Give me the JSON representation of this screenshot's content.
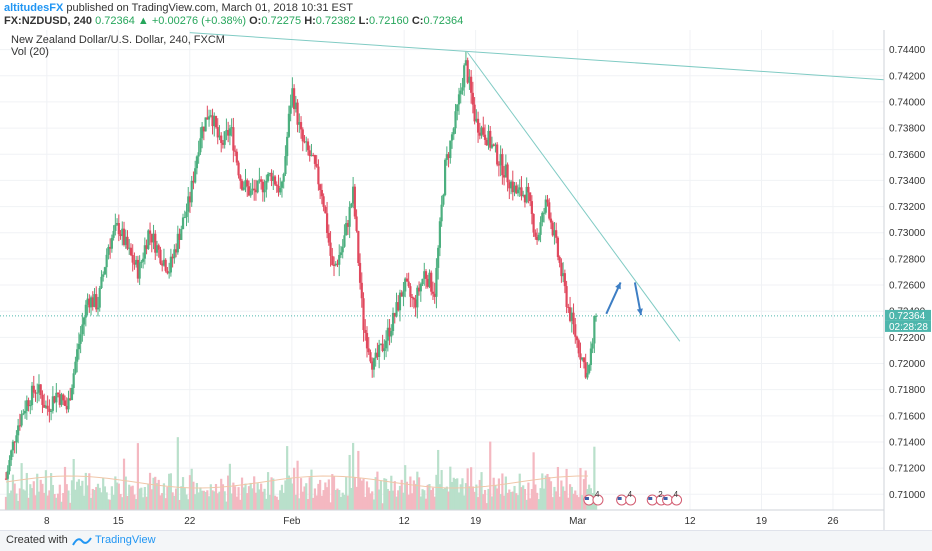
{
  "header": {
    "author": "altitudesFX",
    "published_text": " published on TradingView.com, March 01, 2018 10:31 EST",
    "symbol": "FX:NZDUSD, 240",
    "last": "0.72364",
    "change_arrow": "▲",
    "change": "+0.00276 (+0.38%)",
    "o_label": "O:",
    "o_val": "0.72275",
    "h_label": "H:",
    "h_val": "0.72382",
    "l_label": "L:",
    "l_val": "0.72160",
    "c_label": "C:",
    "c_val": "0.72364"
  },
  "legend": {
    "title": "New Zealand Dollar/U.S. Dollar, 240, FXCM",
    "vol": "Vol (20)"
  },
  "footer": {
    "created_with": "Created with",
    "brand": "TradingView"
  },
  "colors": {
    "up": "#4caf7f",
    "down": "#e0495e",
    "up_vol": "#b9e0cb",
    "down_vol": "#f4b8c1",
    "trendline": "#80cbc4",
    "arrow": "#3d7ec4",
    "price_tag": "#4db6ac",
    "grid": "#f0f2f5",
    "axis_text": "#333333"
  },
  "chart_data": {
    "type": "candlestick",
    "title": "New Zealand Dollar/U.S. Dollar, 240, FXCM",
    "ylim": [
      0.7088,
      0.7455
    ],
    "y_ticks": [
      "0.71000",
      "0.71200",
      "0.71400",
      "0.71600",
      "0.71800",
      "0.72000",
      "0.72200",
      "0.72400",
      "0.72600",
      "0.72800",
      "0.73000",
      "0.73200",
      "0.73400",
      "0.73600",
      "0.73800",
      "0.74000",
      "0.74200",
      "0.74400"
    ],
    "x_ticks": [
      {
        "label": "8",
        "day": 4
      },
      {
        "label": "15",
        "day": 11
      },
      {
        "label": "22",
        "day": 18
      },
      {
        "label": "Feb",
        "day": 28
      },
      {
        "label": "12",
        "day": 39
      },
      {
        "label": "19",
        "day": 46
      },
      {
        "label": "Mar",
        "day": 56
      },
      {
        "label": "12",
        "day": 67
      },
      {
        "label": "19",
        "day": 74
      },
      {
        "label": "26",
        "day": 81
      }
    ],
    "xlim_days": [
      0,
      86
    ],
    "current_price": "0.72364",
    "countdown": "02:28:28",
    "current_value": 0.72364,
    "price_path": [
      [
        0,
        0.7112
      ],
      [
        1,
        0.715
      ],
      [
        2,
        0.717
      ],
      [
        3,
        0.7182
      ],
      [
        4,
        0.7165
      ],
      [
        5,
        0.7178
      ],
      [
        6,
        0.7165
      ],
      [
        7,
        0.721
      ],
      [
        8,
        0.725
      ],
      [
        9,
        0.7245
      ],
      [
        10,
        0.729
      ],
      [
        11,
        0.7305
      ],
      [
        12,
        0.7285
      ],
      [
        13,
        0.727
      ],
      [
        14,
        0.7302
      ],
      [
        15,
        0.7285
      ],
      [
        16,
        0.7272
      ],
      [
        17,
        0.73
      ],
      [
        18,
        0.7325
      ],
      [
        19,
        0.7375
      ],
      [
        20,
        0.7395
      ],
      [
        21,
        0.7365
      ],
      [
        22,
        0.738
      ],
      [
        23,
        0.734
      ],
      [
        24,
        0.733
      ],
      [
        25,
        0.7335
      ],
      [
        26,
        0.7345
      ],
      [
        27,
        0.733
      ],
      [
        28,
        0.741
      ],
      [
        29,
        0.737
      ],
      [
        30,
        0.7355
      ],
      [
        31,
        0.733
      ],
      [
        32,
        0.727
      ],
      [
        33,
        0.729
      ],
      [
        34,
        0.733
      ],
      [
        35,
        0.723
      ],
      [
        36,
        0.7198
      ],
      [
        37,
        0.7215
      ],
      [
        38,
        0.7235
      ],
      [
        39,
        0.726
      ],
      [
        40,
        0.7245
      ],
      [
        41,
        0.727
      ],
      [
        42,
        0.7255
      ],
      [
        43,
        0.735
      ],
      [
        44,
        0.7385
      ],
      [
        45,
        0.743
      ],
      [
        46,
        0.7385
      ],
      [
        47,
        0.7375
      ],
      [
        48,
        0.736
      ],
      [
        49,
        0.7345
      ],
      [
        50,
        0.733
      ],
      [
        51,
        0.733
      ],
      [
        52,
        0.7295
      ],
      [
        53,
        0.7325
      ],
      [
        54,
        0.7285
      ],
      [
        55,
        0.7245
      ],
      [
        56,
        0.7215
      ],
      [
        57,
        0.719
      ],
      [
        57.8,
        0.7236
      ]
    ],
    "volume_ylim": [
      0,
      100
    ],
    "volume_pattern": [
      30,
      55,
      25,
      45,
      65,
      35,
      40,
      20,
      50,
      70,
      28,
      45,
      60,
      33,
      42,
      25,
      55,
      38,
      48,
      30,
      62,
      40,
      35,
      52,
      27,
      44,
      58,
      36,
      47,
      31
    ]
  },
  "annotations": {
    "trendline_1": {
      "from": {
        "day": 18,
        "price": 0.7453
      },
      "to": {
        "day": 86,
        "price": 0.7417
      }
    },
    "trendline_2": {
      "from": {
        "day": 45.2,
        "price": 0.7438
      },
      "to": {
        "day": 66,
        "price": 0.7217
      }
    },
    "arrow_up": {
      "from": {
        "day": 58.8,
        "price": 0.7238
      },
      "to": {
        "day": 60.2,
        "price": 0.7262
      }
    },
    "arrow_down": {
      "from": {
        "day": 61.6,
        "price": 0.7262
      },
      "to": {
        "day": 62.2,
        "price": 0.7237
      }
    },
    "event_markers": [
      {
        "day": 57.1,
        "label": "4"
      },
      {
        "day": 60.3,
        "label": "4"
      },
      {
        "day": 63.3,
        "label": "2"
      },
      {
        "day": 64.8,
        "label": "4"
      }
    ]
  }
}
